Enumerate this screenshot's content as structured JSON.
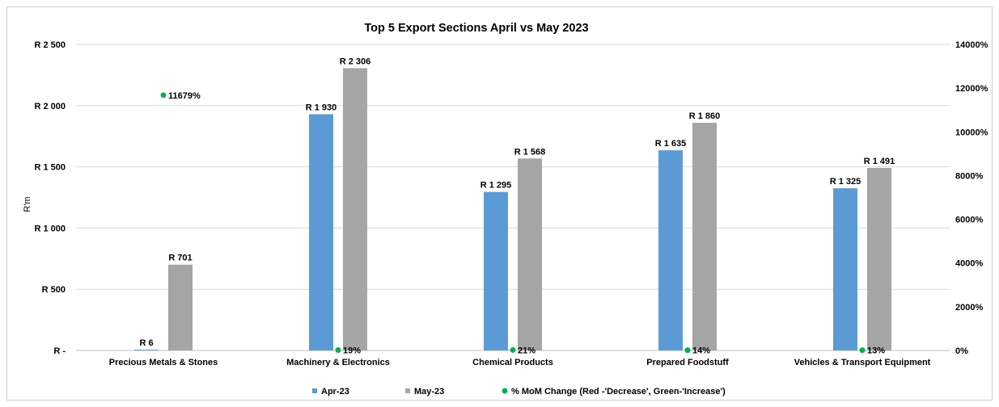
{
  "chart_data": {
    "type": "bar",
    "title": "Top 5 Export Sections April vs May 2023",
    "ylabel": "R'm",
    "y2label": "",
    "ylim": [
      0,
      2500
    ],
    "y2lim": [
      0,
      14000
    ],
    "yticks": [
      {
        "value": 0,
        "label": "R  -"
      },
      {
        "value": 500,
        "label": "R  500"
      },
      {
        "value": 1000,
        "label": "R 1 000"
      },
      {
        "value": 1500,
        "label": "R 1 500"
      },
      {
        "value": 2000,
        "label": "R 2 000"
      },
      {
        "value": 2500,
        "label": "R 2 500"
      }
    ],
    "y2ticks": [
      {
        "value": 0,
        "label": "0%"
      },
      {
        "value": 2000,
        "label": "2000%"
      },
      {
        "value": 4000,
        "label": "4000%"
      },
      {
        "value": 6000,
        "label": "6000%"
      },
      {
        "value": 8000,
        "label": "8000%"
      },
      {
        "value": 10000,
        "label": "10000%"
      },
      {
        "value": 12000,
        "label": "12000%"
      },
      {
        "value": 14000,
        "label": "14000%"
      }
    ],
    "categories": [
      "Precious Metals & Stones",
      "Machinery & Electronics",
      "Chemical Products",
      "Prepared Foodstuff",
      "Vehicles & Transport Equipment"
    ],
    "series": [
      {
        "name": "Apr-23",
        "type": "bar",
        "axis": "left",
        "color": "#5b9bd5",
        "values": [
          6,
          1930,
          1295,
          1635,
          1325
        ],
        "labels": [
          "R  6",
          "R 1 930",
          "R 1 295",
          "R 1 635",
          "R 1 325"
        ]
      },
      {
        "name": "May-23",
        "type": "bar",
        "axis": "left",
        "color": "#a5a5a5",
        "values": [
          701,
          2306,
          1568,
          1860,
          1491
        ],
        "labels": [
          "R  701",
          "R 2 306",
          "R 1 568",
          "R 1 860",
          "R 1 491"
        ]
      },
      {
        "name": "% MoM Change (Red -'Decrease', Green-'Increase')",
        "type": "scatter",
        "axis": "right",
        "color": "#00b050",
        "values": [
          11679,
          19,
          21,
          14,
          13
        ],
        "labels": [
          "11679%",
          "19%",
          "21%",
          "14%",
          "13%"
        ]
      }
    ],
    "grid": true,
    "legend": "bottom"
  }
}
